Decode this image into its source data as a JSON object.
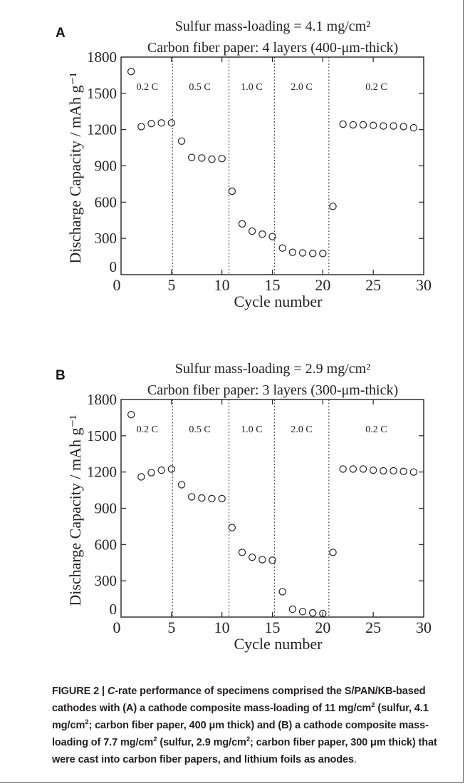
{
  "chart_data": [
    {
      "type": "scatter",
      "panel": "A",
      "title": "Sulfur mass-loading = 4.1 mg/cm²",
      "subtitle": "Carbon fiber paper: 4 layers (400-μm-thick)",
      "xlabel": "Cycle number",
      "ylabel": "Discharge Capacity / mAh g⁻¹",
      "xlim": [
        0,
        30
      ],
      "ylim": [
        0,
        1800
      ],
      "xticks": [
        0,
        5,
        10,
        15,
        20,
        25,
        30
      ],
      "yticks": [
        0,
        300,
        600,
        900,
        1200,
        1500,
        1800
      ],
      "separators": [
        5.1,
        10.7,
        15.2,
        20.6
      ],
      "regions": [
        {
          "label": "0.2 C",
          "x": 2.6
        },
        {
          "label": "0.5 C",
          "x": 7.8
        },
        {
          "label": "1.0 C",
          "x": 12.95
        },
        {
          "label": "2.0 C",
          "x": 17.9
        },
        {
          "label": "0.2 C",
          "x": 25.3
        }
      ],
      "x": [
        1,
        2,
        3,
        4,
        5,
        6,
        7,
        8,
        9,
        10,
        11,
        12,
        13,
        14,
        15,
        16,
        17,
        18,
        19,
        20,
        21,
        22,
        23,
        24,
        25,
        26,
        27,
        28,
        29
      ],
      "y": [
        1680,
        1225,
        1250,
        1255,
        1255,
        1105,
        970,
        965,
        955,
        960,
        690,
        420,
        360,
        335,
        315,
        220,
        185,
        180,
        175,
        175,
        565,
        1245,
        1240,
        1240,
        1235,
        1230,
        1230,
        1225,
        1215
      ]
    },
    {
      "type": "scatter",
      "panel": "B",
      "title": "Sulfur mass-loading = 2.9 mg/cm²",
      "subtitle": "Carbon fiber paper: 3 layers (300-μm-thick)",
      "xlabel": "Cycle number",
      "ylabel": "Discharge Capacity / mAh g⁻¹",
      "xlim": [
        0,
        30
      ],
      "ylim": [
        0,
        1800
      ],
      "xticks": [
        0,
        5,
        10,
        15,
        20,
        25,
        30
      ],
      "yticks": [
        0,
        300,
        600,
        900,
        1200,
        1500,
        1800
      ],
      "separators": [
        5.1,
        10.7,
        15.2,
        20.6
      ],
      "regions": [
        {
          "label": "0.2 C",
          "x": 2.6
        },
        {
          "label": "0.5 C",
          "x": 7.8
        },
        {
          "label": "1.0 C",
          "x": 12.95
        },
        {
          "label": "2.0 C",
          "x": 17.9
        },
        {
          "label": "0.2 C",
          "x": 25.3
        }
      ],
      "x": [
        1,
        2,
        3,
        4,
        5,
        6,
        7,
        8,
        9,
        10,
        11,
        12,
        13,
        14,
        15,
        16,
        17,
        18,
        19,
        20,
        21,
        22,
        23,
        24,
        25,
        26,
        27,
        28,
        29
      ],
      "y": [
        1675,
        1160,
        1195,
        1215,
        1225,
        1095,
        995,
        985,
        980,
        980,
        740,
        535,
        495,
        475,
        470,
        210,
        65,
        45,
        35,
        30,
        535,
        1225,
        1225,
        1225,
        1215,
        1210,
        1210,
        1205,
        1200
      ]
    }
  ],
  "caption": {
    "lead": "FIGURE 2 | ",
    "italic": "C",
    "text_1": "-rate performance of specimens comprised the S/PAN/KB-based cathodes with (A) a cathode composite mass-loading of 11 mg/cm",
    "sup_1": "2",
    "text_2": " (sulfur, 4.1 mg/cm",
    "sup_2": "2",
    "text_3": "; carbon fiber paper, 400 μm thick) and (B) a cathode composite mass-loading of 7.7 mg/cm",
    "sup_3": "2",
    "text_4": " (sulfur, 2.9 mg/cm",
    "sup_4": "2",
    "text_5": "; carbon fiber paper, 300 μm thick) that were cast into carbon fiber papers, and lithium foils as anodes",
    "tail": "."
  }
}
